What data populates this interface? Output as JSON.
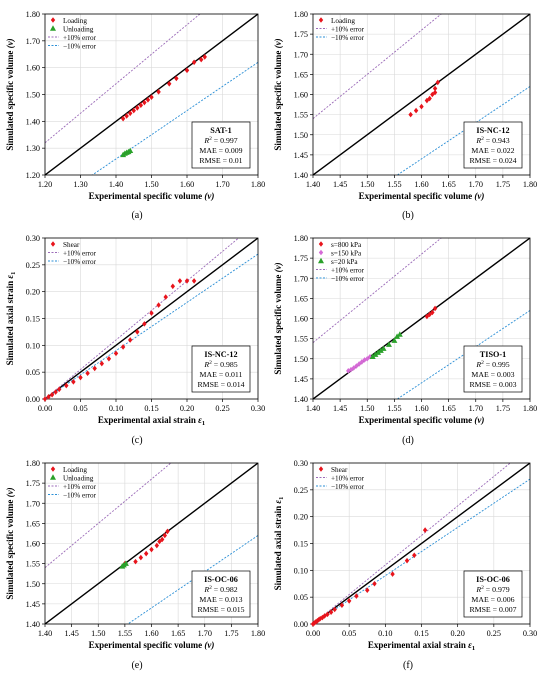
{
  "colors": {
    "loading": "#e8141c",
    "unloading": "#2aa12a",
    "plus10": "#9b6bb8",
    "minus10": "#2b8fd6",
    "line11": "#000000",
    "s800": "#e8141c",
    "s150": "#d56ad6",
    "s20": "#2aa12a"
  },
  "chart_data": [
    {
      "id": "a",
      "type": "scatter",
      "panel_label": "(a)",
      "xlabel": "Experimental specific volume",
      "xlabel_symbol": "(v)",
      "ylabel": "Simulated specific volume",
      "ylabel_symbol": "(v)",
      "xlim": [
        1.2,
        1.8
      ],
      "ylim": [
        1.2,
        1.8
      ],
      "xticks": [
        "1.20",
        "1.30",
        "1.40",
        "1.50",
        "1.60",
        "1.70",
        "1.80"
      ],
      "yticks": [
        "1.20",
        "1.30",
        "1.40",
        "1.50",
        "1.60",
        "1.70",
        "1.80"
      ],
      "legend": [
        "Loading",
        "Unloading",
        "+10% error",
        "−10% error"
      ],
      "stats": {
        "name": "SAT-1",
        "r2": "= 0.997",
        "mae": "MAE = 0.009",
        "rmse": "RMSE = 0.01"
      },
      "series": [
        {
          "name": "Loading",
          "marker": "diamond",
          "color": "#e8141c",
          "x": [
            1.42,
            1.43,
            1.44,
            1.45,
            1.46,
            1.47,
            1.48,
            1.49,
            1.5,
            1.52,
            1.55,
            1.57,
            1.6,
            1.62,
            1.64,
            1.65
          ],
          "y": [
            1.41,
            1.42,
            1.43,
            1.44,
            1.45,
            1.46,
            1.47,
            1.48,
            1.49,
            1.51,
            1.54,
            1.56,
            1.59,
            1.62,
            1.63,
            1.64
          ]
        },
        {
          "name": "Unloading",
          "marker": "triangle",
          "color": "#2aa12a",
          "x": [
            1.42,
            1.425,
            1.43,
            1.435,
            1.44
          ],
          "y": [
            1.275,
            1.28,
            1.283,
            1.286,
            1.29
          ]
        }
      ]
    },
    {
      "id": "b",
      "type": "scatter",
      "panel_label": "(b)",
      "xlabel": "Experimental specific volume",
      "xlabel_symbol": "(v)",
      "ylabel": "Simulated specific volume",
      "ylabel_symbol": "(v)",
      "xlim": [
        1.4,
        1.8
      ],
      "ylim": [
        1.4,
        1.8
      ],
      "xticks": [
        "1.40",
        "1.45",
        "1.50",
        "1.55",
        "1.60",
        "1.65",
        "1.70",
        "1.75",
        "1.80"
      ],
      "yticks": [
        "1.40",
        "1.45",
        "1.50",
        "1.55",
        "1.60",
        "1.65",
        "1.70",
        "1.75",
        "1.80"
      ],
      "legend": [
        "Loading",
        "+10% error",
        "−10% error"
      ],
      "stats": {
        "name": "IS-NC-12",
        "r2": "= 0.943",
        "mae": "MAE = 0.022",
        "rmse": "RMSE = 0.024"
      },
      "series": [
        {
          "name": "Loading",
          "marker": "diamond",
          "color": "#e8141c",
          "x": [
            1.58,
            1.59,
            1.6,
            1.61,
            1.615,
            1.62,
            1.625,
            1.625,
            1.63
          ],
          "y": [
            1.55,
            1.56,
            1.57,
            1.585,
            1.59,
            1.6,
            1.605,
            1.615,
            1.63
          ]
        }
      ]
    },
    {
      "id": "c",
      "type": "scatter",
      "panel_label": "(c)",
      "xlabel": "Experimental axial strain",
      "xlabel_symbol": "ε",
      "ylabel": "Simulated axial strain",
      "ylabel_symbol": "ε",
      "xlim": [
        0,
        0.3
      ],
      "ylim": [
        0,
        0.3
      ],
      "xticks": [
        "0.00",
        "0.05",
        "0.10",
        "0.15",
        "0.20",
        "0.25",
        "0.30"
      ],
      "yticks": [
        "0.00",
        "0.05",
        "0.10",
        "0.15",
        "0.20",
        "0.25",
        "0.30"
      ],
      "legend": [
        "Shear",
        "+10% error",
        "−10% error"
      ],
      "stats": {
        "name": "IS-NC-12",
        "r2": "= 0.985",
        "mae": "MAE = 0.011",
        "rmse": "RMSE = 0.014"
      },
      "series": [
        {
          "name": "Shear",
          "marker": "diamond",
          "color": "#e8141c",
          "x": [
            0.0,
            0.005,
            0.01,
            0.015,
            0.02,
            0.03,
            0.04,
            0.05,
            0.06,
            0.07,
            0.08,
            0.09,
            0.1,
            0.11,
            0.12,
            0.13,
            0.14,
            0.15,
            0.16,
            0.17,
            0.18,
            0.19,
            0.2,
            0.21
          ],
          "y": [
            0.0,
            0.004,
            0.008,
            0.013,
            0.018,
            0.025,
            0.032,
            0.04,
            0.048,
            0.057,
            0.066,
            0.075,
            0.085,
            0.097,
            0.11,
            0.125,
            0.14,
            0.16,
            0.175,
            0.19,
            0.21,
            0.22,
            0.22,
            0.22
          ]
        }
      ]
    },
    {
      "id": "d",
      "type": "scatter",
      "panel_label": "(d)",
      "xlabel": "Experimental specific volume",
      "xlabel_symbol": "(v)",
      "ylabel": "Simulated specific volume",
      "ylabel_symbol": "(v)",
      "xlim": [
        1.4,
        1.8
      ],
      "ylim": [
        1.4,
        1.8
      ],
      "xticks": [
        "1.40",
        "1.45",
        "1.50",
        "1.55",
        "1.60",
        "1.65",
        "1.70",
        "1.75",
        "1.80"
      ],
      "yticks": [
        "1.40",
        "1.45",
        "1.50",
        "1.55",
        "1.60",
        "1.65",
        "1.70",
        "1.75",
        "1.80"
      ],
      "legend": [
        "s=800 kPa",
        "s=150 kPa",
        "s=20 kPa",
        "+10% error",
        "−10% error"
      ],
      "stats": {
        "name": "TISO-1",
        "r2": "= 0.995",
        "mae": "MAE = 0.003",
        "rmse": "RMSE = 0.003"
      },
      "series": [
        {
          "name": "s=800 kPa",
          "marker": "diamond",
          "color": "#e8141c",
          "x": [
            1.61,
            1.615,
            1.62,
            1.625
          ],
          "y": [
            1.605,
            1.61,
            1.615,
            1.625
          ]
        },
        {
          "name": "s=150 kPa",
          "marker": "diamond",
          "color": "#d56ad6",
          "x": [
            1.465,
            1.47,
            1.475,
            1.48,
            1.485,
            1.49,
            1.495,
            1.5,
            1.505
          ],
          "y": [
            1.47,
            1.473,
            1.477,
            1.482,
            1.487,
            1.492,
            1.497,
            1.5,
            1.505
          ]
        },
        {
          "name": "s=20 kPa",
          "marker": "triangle",
          "color": "#2aa12a",
          "x": [
            1.51,
            1.515,
            1.52,
            1.525,
            1.53,
            1.54,
            1.55,
            1.555,
            1.56
          ],
          "y": [
            1.505,
            1.51,
            1.515,
            1.52,
            1.525,
            1.535,
            1.545,
            1.555,
            1.56
          ]
        }
      ]
    },
    {
      "id": "e",
      "type": "scatter",
      "panel_label": "(e)",
      "xlabel": "Experimental specific volume",
      "xlabel_symbol": "(v)",
      "ylabel": "Simulated specific volume",
      "ylabel_symbol": "(v)",
      "xlim": [
        1.4,
        1.8
      ],
      "ylim": [
        1.4,
        1.8
      ],
      "xticks": [
        "1.40",
        "1.45",
        "1.50",
        "1.55",
        "1.60",
        "1.65",
        "1.70",
        "1.75",
        "1.80"
      ],
      "yticks": [
        "1.40",
        "1.45",
        "1.50",
        "1.55",
        "1.60",
        "1.65",
        "1.70",
        "1.75",
        "1.80"
      ],
      "legend": [
        "Loading",
        "Unloading",
        "+10% error",
        "−10% error"
      ],
      "stats": {
        "name": "IS-OC-06",
        "r2": "= 0.982",
        "mae": "MAE = 0.013",
        "rmse": "RMSE = 0.015"
      },
      "series": [
        {
          "name": "Loading",
          "marker": "diamond",
          "color": "#e8141c",
          "x": [
            1.55,
            1.57,
            1.58,
            1.59,
            1.6,
            1.61,
            1.615,
            1.62,
            1.625,
            1.63
          ],
          "y": [
            1.55,
            1.555,
            1.565,
            1.575,
            1.585,
            1.595,
            1.605,
            1.61,
            1.62,
            1.63
          ]
        },
        {
          "name": "Unloading",
          "marker": "triangle",
          "color": "#2aa12a",
          "x": [
            1.545,
            1.548,
            1.552
          ],
          "y": [
            1.543,
            1.546,
            1.55
          ]
        }
      ]
    },
    {
      "id": "f",
      "type": "scatter",
      "panel_label": "(f)",
      "xlabel": "Experimental axial strain",
      "xlabel_symbol": "ε",
      "ylabel": "Simulated axial strain",
      "ylabel_symbol": "ε",
      "xlim": [
        0,
        0.3
      ],
      "ylim": [
        0,
        0.3
      ],
      "xticks": [
        "0.00",
        "0.05",
        "0.10",
        "0.15",
        "0.20",
        "0.25",
        "0.30"
      ],
      "yticks": [
        "0.00",
        "0.05",
        "0.10",
        "0.15",
        "0.20",
        "0.25",
        "0.30"
      ],
      "legend": [
        "Shear",
        "+10% error",
        "−10% error"
      ],
      "stats": {
        "name": "IS-OC-06",
        "r2": "= 0.979",
        "mae": "MAE = 0.006",
        "rmse": "RMSE = 0.007"
      },
      "series": [
        {
          "name": "Shear",
          "marker": "diamond",
          "color": "#e8141c",
          "x": [
            0.0,
            0.002,
            0.004,
            0.006,
            0.008,
            0.01,
            0.013,
            0.016,
            0.02,
            0.025,
            0.03,
            0.04,
            0.05,
            0.06,
            0.075,
            0.085,
            0.11,
            0.13,
            0.14,
            0.155
          ],
          "y": [
            0.0,
            0.002,
            0.004,
            0.006,
            0.008,
            0.01,
            0.012,
            0.015,
            0.018,
            0.022,
            0.027,
            0.035,
            0.043,
            0.052,
            0.063,
            0.075,
            0.093,
            0.118,
            0.128,
            0.175
          ]
        }
      ]
    }
  ]
}
